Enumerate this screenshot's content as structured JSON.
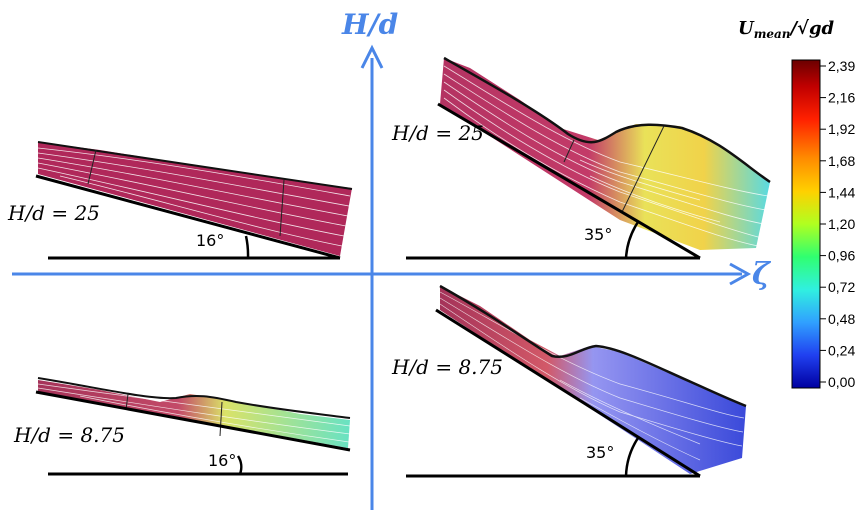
{
  "axes": {
    "vertical_label": "H/d",
    "horizontal_label": "ζ",
    "color": "#4a86e8"
  },
  "colorbar": {
    "title_u": "U",
    "title_sub": "mean",
    "title_rest": "/√gd",
    "ticks": [
      "2,39",
      "2,16",
      "1,92",
      "1,68",
      "1,44",
      "1,20",
      "0,96",
      "0,72",
      "0,48",
      "0,24",
      "0,00"
    ],
    "colors": [
      "#7a0000",
      "#d40000",
      "#ff4000",
      "#ffa000",
      "#e8ff20",
      "#80ff40",
      "#20ff90",
      "#30e8ff",
      "#3080ff",
      "#2030e0",
      "#00008a"
    ]
  },
  "panels": {
    "top_left": {
      "label": "H/d = 25",
      "angle": "16°"
    },
    "top_right": {
      "label": "H/d = 25",
      "angle": "35°"
    },
    "bottom_left": {
      "label": "H/d = 8.75",
      "angle": "16°"
    },
    "bottom_right": {
      "label": "H/d = 8.75",
      "angle": "35°"
    }
  },
  "flow_colors": {
    "fast": "#b0285a",
    "mid": "#f0d050",
    "slow": "#7878e0",
    "free_surface": "#111111"
  }
}
